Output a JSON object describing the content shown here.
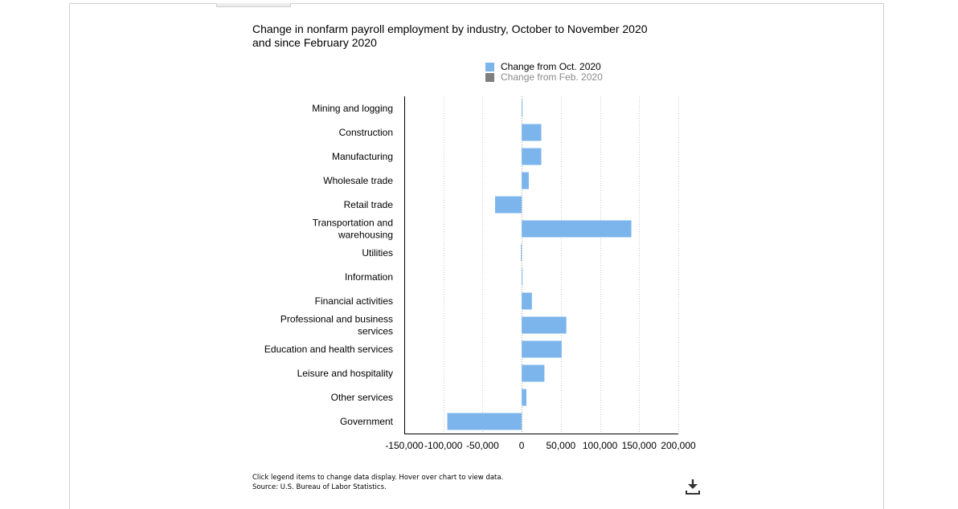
{
  "colors": {
    "bar": "#7cb5ec",
    "feb_swatch": "#7f7f7f",
    "grid": "#c8c8c8",
    "axis": "#000000"
  },
  "legend": {
    "items": [
      {
        "label": "Change from Oct. 2020",
        "color": "#7cb5ec",
        "active": true
      },
      {
        "label": "Change from Feb. 2020",
        "color": "#7f7f7f",
        "active": false
      }
    ]
  },
  "footnote": {
    "line1": "Click legend items to change data display. Hover over chart to view data.",
    "line2": "Source: U.S. Bureau of Labor Statistics."
  },
  "icons": {
    "download": "download-icon"
  },
  "chart_data": {
    "type": "bar",
    "orientation": "horizontal",
    "title_lines": [
      "Change in nonfarm payroll employment by industry, October to November 2020",
      "and since February 2020"
    ],
    "categories": [
      [
        "Mining and logging"
      ],
      [
        "Construction"
      ],
      [
        "Manufacturing"
      ],
      [
        "Wholesale trade"
      ],
      [
        "Retail trade"
      ],
      [
        "Transportation and",
        "warehousing"
      ],
      [
        "Utilities"
      ],
      [
        "Information"
      ],
      [
        "Financial activities"
      ],
      [
        "Professional and business",
        "services"
      ],
      [
        "Education and health services"
      ],
      [
        "Leisure and hospitality"
      ],
      [
        "Other services"
      ],
      [
        "Government"
      ]
    ],
    "series": [
      {
        "name": "Change from Oct. 2020",
        "color": "#7cb5ec",
        "values": [
          1000,
          25000,
          25000,
          9000,
          -34000,
          140000,
          -1000,
          1000,
          13000,
          57000,
          51000,
          29000,
          6000,
          -95000
        ]
      }
    ],
    "xlim": [
      -150000,
      200000
    ],
    "xticks": [
      -150000,
      -100000,
      -50000,
      0,
      50000,
      100000,
      150000,
      200000
    ],
    "xtick_labels": [
      "-150,000",
      "-100,000",
      "-50,000",
      "0",
      "50,000",
      "100,000",
      "150,000",
      "200,000"
    ],
    "grid": "vertical dotted",
    "legend_position": "top-right"
  }
}
